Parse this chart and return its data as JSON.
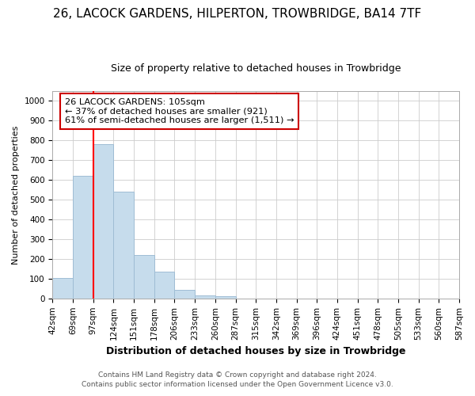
{
  "title": "26, LACOCK GARDENS, HILPERTON, TROWBRIDGE, BA14 7TF",
  "subtitle": "Size of property relative to detached houses in Trowbridge",
  "xlabel": "Distribution of detached houses by size in Trowbridge",
  "ylabel": "Number of detached properties",
  "bin_labels": [
    "42sqm",
    "69sqm",
    "97sqm",
    "124sqm",
    "151sqm",
    "178sqm",
    "206sqm",
    "233sqm",
    "260sqm",
    "287sqm",
    "315sqm",
    "342sqm",
    "369sqm",
    "396sqm",
    "424sqm",
    "451sqm",
    "478sqm",
    "505sqm",
    "533sqm",
    "560sqm",
    "587sqm"
  ],
  "bar_heights": [
    103,
    620,
    780,
    540,
    220,
    135,
    45,
    15,
    10,
    0,
    0,
    0,
    0,
    0,
    0,
    0,
    0,
    0,
    0,
    0
  ],
  "bar_color": "#c6dcec",
  "bar_edge_color": "#9fbdd4",
  "red_line_bin_index": 2,
  "annotation_text": "26 LACOCK GARDENS: 105sqm\n← 37% of detached houses are smaller (921)\n61% of semi-detached houses are larger (1,511) →",
  "annotation_box_color": "#ffffff",
  "annotation_box_edgecolor": "#cc0000",
  "footer_line1": "Contains HM Land Registry data © Crown copyright and database right 2024.",
  "footer_line2": "Contains public sector information licensed under the Open Government Licence v3.0.",
  "ylim": [
    0,
    1050
  ],
  "yticks": [
    0,
    100,
    200,
    300,
    400,
    500,
    600,
    700,
    800,
    900,
    1000
  ],
  "background_color": "#ffffff",
  "grid_color": "#cccccc",
  "title_fontsize": 11,
  "subtitle_fontsize": 9,
  "ylabel_fontsize": 8,
  "xlabel_fontsize": 9,
  "tick_fontsize": 7.5,
  "footer_fontsize": 6.5
}
